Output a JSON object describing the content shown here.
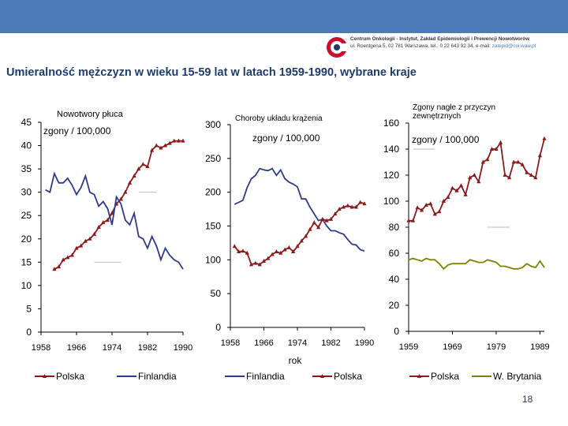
{
  "header": {
    "institute_line1": "Centrum Onkologii - Instytut, Zakład Epidemiologii i Prewencji Nowotworów",
    "institute_line2": "ul. Roentgena 5, 02 781 Warszawa, tel.: 0 22 643 92 34, e-mail:",
    "institute_email": "zatepid@coi.waw.pl"
  },
  "slide": {
    "title": "Umieralność mężczyzn w wieku 15-59 lat w latach 1959-1990, wybrane kraje",
    "page_number": "18",
    "x_axis_caption": "rok"
  },
  "colors": {
    "polska": "#8b1a1a",
    "finlandia": "#2e3a8c",
    "wbrytania": "#808000",
    "topbar": "#4a7ab8"
  },
  "chart_data": [
    {
      "type": "line",
      "title": "Nowotwory płuca",
      "unit_label": "zgony / 100,000",
      "x_ticks": [
        1958,
        1966,
        1974,
        1982,
        1990
      ],
      "xlim": [
        1958,
        1990
      ],
      "y_ticks": [
        0,
        5,
        10,
        15,
        20,
        25,
        30,
        35,
        40,
        45
      ],
      "ylim": [
        0,
        45
      ],
      "series": [
        {
          "name": "Polska",
          "key": "polska",
          "marker": true,
          "x": [
            1961,
            1962,
            1963,
            1964,
            1965,
            1966,
            1967,
            1968,
            1969,
            1970,
            1971,
            1972,
            1973,
            1974,
            1975,
            1976,
            1977,
            1978,
            1979,
            1980,
            1981,
            1982,
            1983,
            1984,
            1985,
            1986,
            1987,
            1988,
            1989,
            1990
          ],
          "y": [
            13.5,
            14,
            15.5,
            16,
            16.5,
            18,
            18.5,
            19.5,
            20,
            21,
            22.5,
            23.5,
            24,
            25.5,
            27.5,
            28.5,
            30,
            32,
            33.5,
            35,
            36,
            35.5,
            39,
            40,
            39.5,
            40,
            40.5,
            41,
            41,
            41
          ]
        },
        {
          "name": "Finlandia",
          "key": "finlandia",
          "marker": false,
          "x": [
            1959,
            1960,
            1961,
            1962,
            1963,
            1964,
            1965,
            1966,
            1967,
            1968,
            1969,
            1970,
            1971,
            1972,
            1973,
            1974,
            1975,
            1976,
            1977,
            1978,
            1979,
            1980,
            1981,
            1982,
            1983,
            1984,
            1985,
            1986,
            1987,
            1988,
            1989,
            1990
          ],
          "y": [
            30.5,
            30,
            34,
            32,
            32,
            33,
            31.5,
            29.5,
            31,
            33.5,
            30,
            29.5,
            27,
            28,
            26.5,
            23,
            29,
            27.5,
            24,
            23,
            25.5,
            20.5,
            20,
            18,
            20.5,
            18.5,
            15.5,
            18,
            16.5,
            15.5,
            15,
            13.5
          ]
        }
      ],
      "legend": [
        "Polska",
        "Finlandia"
      ]
    },
    {
      "type": "line",
      "title": "Choroby układu krążenia",
      "unit_label": "zgony / 100,000",
      "x_ticks": [
        1958,
        1966,
        1974,
        1982,
        1990
      ],
      "xlim": [
        1958,
        1990
      ],
      "y_ticks": [
        0,
        50,
        100,
        150,
        200,
        250,
        300
      ],
      "ylim": [
        0,
        300
      ],
      "series": [
        {
          "name": "Finlandia",
          "key": "finlandia",
          "marker": false,
          "x": [
            1959,
            1960,
            1961,
            1962,
            1963,
            1964,
            1965,
            1966,
            1967,
            1968,
            1969,
            1970,
            1971,
            1972,
            1973,
            1974,
            1975,
            1976,
            1977,
            1978,
            1979,
            1980,
            1981,
            1982,
            1983,
            1984,
            1985,
            1986,
            1987,
            1988,
            1989,
            1990
          ],
          "y": [
            182,
            185,
            188,
            207,
            220,
            225,
            235,
            233,
            232,
            235,
            225,
            233,
            220,
            215,
            212,
            208,
            190,
            190,
            178,
            168,
            158,
            160,
            150,
            143,
            143,
            140,
            138,
            130,
            123,
            122,
            115,
            113
          ]
        },
        {
          "name": "Polska",
          "key": "polska",
          "marker": true,
          "x": [
            1959,
            1960,
            1961,
            1962,
            1963,
            1964,
            1965,
            1966,
            1967,
            1968,
            1969,
            1970,
            1971,
            1972,
            1973,
            1974,
            1975,
            1976,
            1977,
            1978,
            1979,
            1980,
            1981,
            1982,
            1983,
            1984,
            1985,
            1986,
            1987,
            1988,
            1989,
            1990
          ],
          "y": [
            120,
            112,
            113,
            110,
            93,
            95,
            93,
            98,
            102,
            108,
            112,
            110,
            115,
            118,
            112,
            120,
            128,
            135,
            145,
            155,
            148,
            160,
            158,
            160,
            168,
            175,
            178,
            180,
            178,
            178,
            185,
            183
          ]
        }
      ],
      "legend": [
        "Finlandia",
        "Polska"
      ]
    },
    {
      "type": "line",
      "title": "Zgony nagłe z przyczyn zewnętrznych",
      "unit_label": "zgony / 100,000",
      "x_ticks": [
        1959,
        1969,
        1979,
        1989
      ],
      "xlim": [
        1959,
        1990
      ],
      "y_ticks": [
        0,
        20,
        40,
        60,
        80,
        100,
        120,
        140,
        160
      ],
      "ylim": [
        0,
        160
      ],
      "series": [
        {
          "name": "Polska",
          "key": "polska",
          "marker": true,
          "x": [
            1959,
            1960,
            1961,
            1962,
            1963,
            1964,
            1965,
            1966,
            1967,
            1968,
            1969,
            1970,
            1971,
            1972,
            1973,
            1974,
            1975,
            1976,
            1977,
            1978,
            1979,
            1980,
            1981,
            1982,
            1983,
            1984,
            1985,
            1986,
            1987,
            1988,
            1989,
            1990
          ],
          "y": [
            85,
            85,
            95,
            93,
            97,
            98,
            90,
            92,
            100,
            103,
            110,
            108,
            112,
            105,
            118,
            120,
            115,
            130,
            132,
            140,
            140,
            145,
            120,
            118,
            130,
            130,
            128,
            122,
            120,
            118,
            135,
            148
          ]
        },
        {
          "name": "W. Brytania",
          "key": "wbrytania",
          "marker": false,
          "x": [
            1959,
            1960,
            1961,
            1962,
            1963,
            1964,
            1965,
            1966,
            1967,
            1968,
            1969,
            1970,
            1971,
            1972,
            1973,
            1974,
            1975,
            1976,
            1977,
            1978,
            1979,
            1980,
            1981,
            1982,
            1983,
            1984,
            1985,
            1986,
            1987,
            1988,
            1989,
            1990
          ],
          "y": [
            55,
            56,
            55,
            54,
            56,
            55,
            55,
            52,
            48,
            51,
            52,
            52,
            52,
            52,
            55,
            54,
            53,
            53,
            55,
            54,
            53,
            50,
            50,
            49,
            48,
            48,
            49,
            52,
            50,
            49,
            54,
            49
          ]
        }
      ],
      "legend": [
        "Polska",
        "W. Brytania"
      ]
    }
  ]
}
